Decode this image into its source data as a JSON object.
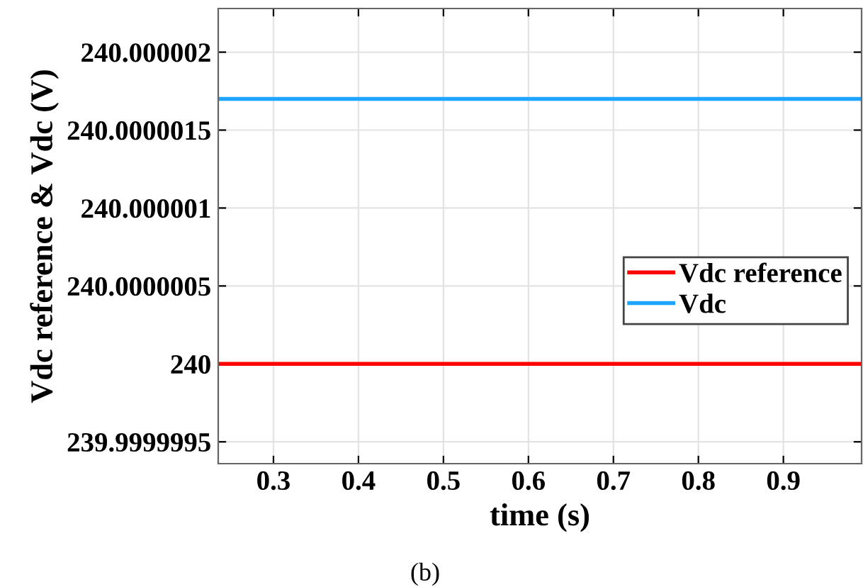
{
  "chart_data": {
    "type": "line",
    "xlabel": "time (s)",
    "ylabel": "Vdc reference & Vdc (V)",
    "annotations": [
      "(b)"
    ],
    "x": [
      0.235,
      0.992
    ],
    "series": [
      {
        "name": "Vdc reference",
        "color": "#ff0000",
        "values": [
          240,
          240
        ]
      },
      {
        "name": "Vdc",
        "color": "#1ea5ff",
        "values": [
          240.0000017,
          240.0000017
        ]
      }
    ],
    "xlim": [
      0.235,
      0.992
    ],
    "xticks": [
      0.3,
      0.4,
      0.5,
      0.6,
      0.7,
      0.8,
      0.9
    ],
    "ylim": [
      239.99999936,
      240.00000228
    ],
    "yticks": [
      239.9999995,
      240,
      240.0000005,
      240.000001,
      240.0000015,
      240.000002
    ],
    "grid": true,
    "legend": "right",
    "marker": "none",
    "line_style": "solid"
  }
}
